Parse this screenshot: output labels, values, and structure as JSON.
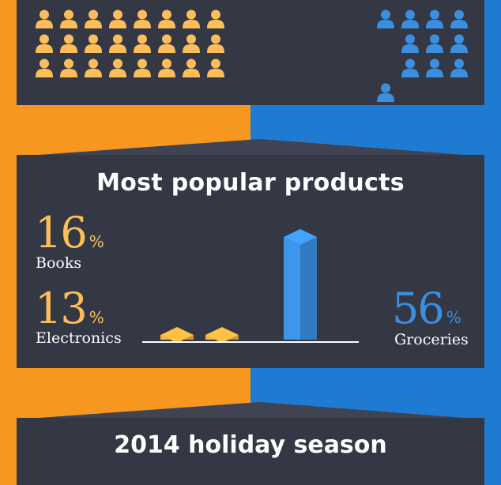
{
  "colors": {
    "orange": "#f7971f",
    "orange_light": "#fbbe5a",
    "blue": "#1e7bd1",
    "blue_bar": "#3a8fe0",
    "panel": "#343844",
    "axis": "#ffffff"
  },
  "people": {
    "icon": "person-icon",
    "left_count": 24,
    "right_count": 11
  },
  "chart_data": {
    "type": "bar",
    "title": "Most popular products",
    "categories": [
      "Books",
      "Electronics",
      "Groceries"
    ],
    "values": [
      16,
      13,
      56
    ],
    "value_labels": [
      "16",
      "13",
      "56"
    ],
    "unit": "%",
    "colors": [
      "#f7a93a",
      "#f7a93a",
      "#3a8fe0"
    ],
    "ylim": [
      0,
      60
    ],
    "grid": false
  },
  "footer": {
    "title": "2014 holiday season"
  }
}
